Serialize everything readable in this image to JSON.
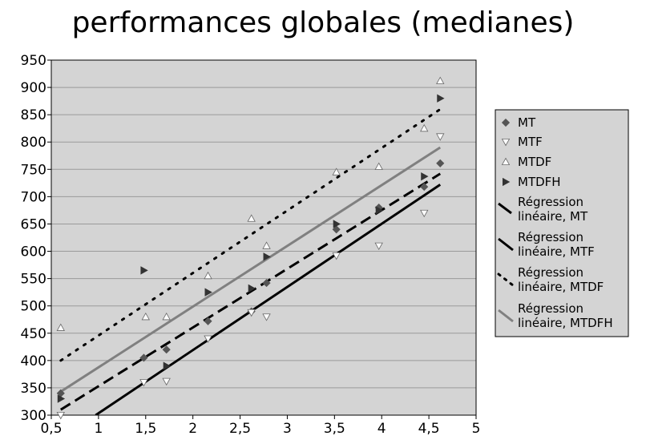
{
  "chart_data": {
    "type": "scatter",
    "title": "performances globales (medianes)",
    "xlabel": "",
    "ylabel": "",
    "xlim": [
      0.5,
      5
    ],
    "ylim": [
      300,
      950
    ],
    "x_ticks": [
      "0,5",
      "1",
      "1,5",
      "2",
      "2,5",
      "3",
      "3,5",
      "4",
      "4,5",
      "5"
    ],
    "y_ticks": [
      "300",
      "350",
      "400",
      "450",
      "500",
      "550",
      "600",
      "650",
      "700",
      "750",
      "800",
      "850",
      "900",
      "950"
    ],
    "grid": "horizontal",
    "legend_position": "right",
    "series": [
      {
        "name": "MT",
        "marker": "diamond",
        "color": "#555555",
        "points": [
          [
            0.6,
            340
          ],
          [
            1.48,
            405
          ],
          [
            1.72,
            420
          ],
          [
            2.16,
            472
          ],
          [
            2.62,
            490
          ],
          [
            2.78,
            542
          ],
          [
            3.52,
            640
          ],
          [
            3.97,
            680
          ],
          [
            4.45,
            718
          ],
          [
            4.62,
            761
          ]
        ]
      },
      {
        "name": "MTF",
        "marker": "triangle-down",
        "color": "#ffffff",
        "points": [
          [
            0.6,
            300
          ],
          [
            1.48,
            360
          ],
          [
            1.72,
            362
          ],
          [
            2.16,
            440
          ],
          [
            2.62,
            488
          ],
          [
            2.78,
            480
          ],
          [
            3.52,
            592
          ],
          [
            3.97,
            610
          ],
          [
            4.45,
            670
          ],
          [
            4.62,
            810
          ]
        ]
      },
      {
        "name": "MTDF",
        "marker": "triangle-up",
        "color": "#ffffff",
        "points": [
          [
            0.6,
            460
          ],
          [
            1.5,
            480
          ],
          [
            1.72,
            480
          ],
          [
            2.16,
            555
          ],
          [
            2.62,
            660
          ],
          [
            2.78,
            610
          ],
          [
            3.52,
            745
          ],
          [
            3.97,
            755
          ],
          [
            4.45,
            825
          ],
          [
            4.62,
            912
          ]
        ]
      },
      {
        "name": "MTDFH",
        "marker": "triangle-right",
        "color": "#333333",
        "points": [
          [
            0.6,
            330
          ],
          [
            1.48,
            565
          ],
          [
            1.72,
            390
          ],
          [
            2.16,
            525
          ],
          [
            2.62,
            532
          ],
          [
            2.78,
            590
          ],
          [
            3.52,
            650
          ],
          [
            3.97,
            675
          ],
          [
            4.45,
            737
          ],
          [
            4.62,
            880
          ]
        ]
      }
    ],
    "regressions": [
      {
        "name": "Régression linéaire, MT",
        "style": "dashed",
        "color": "#000000",
        "x": [
          0.6,
          4.62
        ],
        "y": [
          310,
          742
        ]
      },
      {
        "name": "Régression linéaire, MTF",
        "style": "solid",
        "color": "#000000",
        "x": [
          0.97,
          4.62
        ],
        "y": [
          300,
          722
        ]
      },
      {
        "name": "Régression linéaire, MTDF",
        "style": "dotted",
        "color": "#000000",
        "x": [
          0.6,
          4.62
        ],
        "y": [
          400,
          860
        ]
      },
      {
        "name": "Régression linéaire, MTDFH",
        "style": "solid",
        "color": "#808080",
        "x": [
          0.6,
          4.62
        ],
        "y": [
          343,
          790
        ]
      }
    ],
    "legend": [
      {
        "label": "MT"
      },
      {
        "label": "MTF"
      },
      {
        "label": "MTDF"
      },
      {
        "label": "MTDFH"
      },
      {
        "label1": "Régression",
        "label2": "linéaire, MT"
      },
      {
        "label1": "Régression",
        "label2": "linéaire, MTF"
      },
      {
        "label1": "Régression",
        "label2": "linéaire, MTDF"
      },
      {
        "label1": "Régression",
        "label2": "linéaire, MTDFH"
      }
    ],
    "colors": {
      "plot_background": "#d4d4d4",
      "grid": "#9a9a9a",
      "legend_background": "#d4d4d4"
    }
  }
}
